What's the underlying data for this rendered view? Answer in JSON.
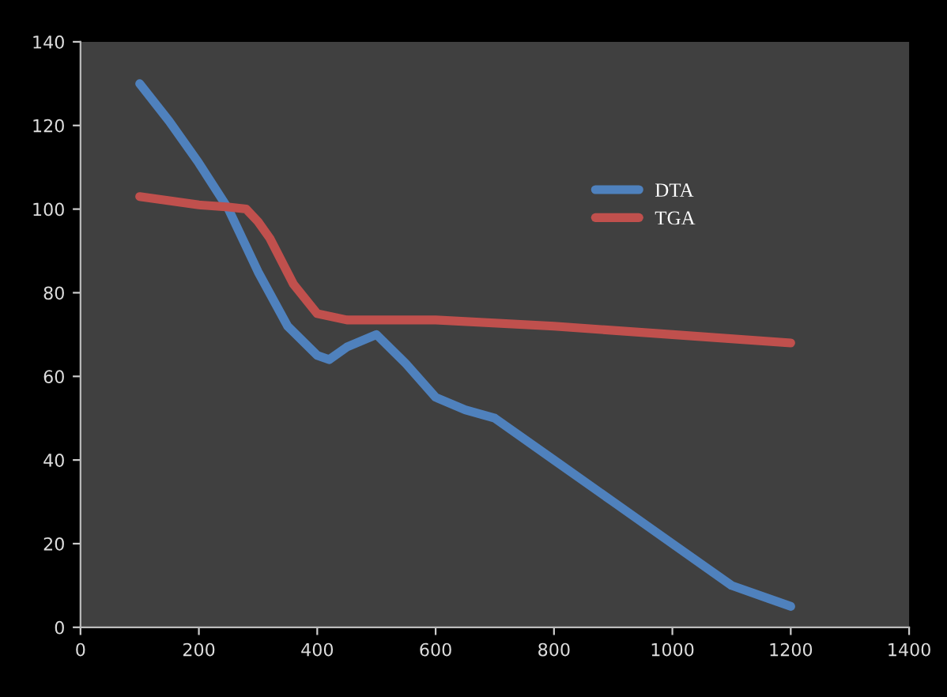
{
  "chart_data": {
    "type": "line",
    "xlim": [
      0,
      1400
    ],
    "ylim": [
      0,
      140
    ],
    "xticks": [
      0,
      200,
      400,
      600,
      800,
      1000,
      1200,
      1400
    ],
    "yticks": [
      0,
      20,
      40,
      60,
      80,
      100,
      120,
      140
    ],
    "grid": false,
    "legend": "right",
    "marker": "none",
    "line_style": "solid",
    "series": [
      {
        "name": "DTA",
        "color": "#4f81bd",
        "x": [
          100,
          150,
          200,
          250,
          300,
          350,
          400,
          420,
          450,
          500,
          550,
          600,
          650,
          700,
          800,
          900,
          1000,
          1100,
          1200
        ],
        "values": [
          130,
          121,
          111,
          100,
          85,
          72,
          65,
          64,
          67,
          70,
          63,
          55,
          52,
          50,
          40,
          30,
          20,
          10,
          5
        ]
      },
      {
        "name": "TGA",
        "color": "#c0504d",
        "x": [
          100,
          200,
          250,
          280,
          300,
          320,
          360,
          400,
          450,
          600,
          800,
          1000,
          1200
        ],
        "values": [
          103,
          101,
          100.5,
          100,
          97,
          93,
          82,
          75,
          73.5,
          73.5,
          72,
          70,
          68
        ]
      }
    ]
  }
}
